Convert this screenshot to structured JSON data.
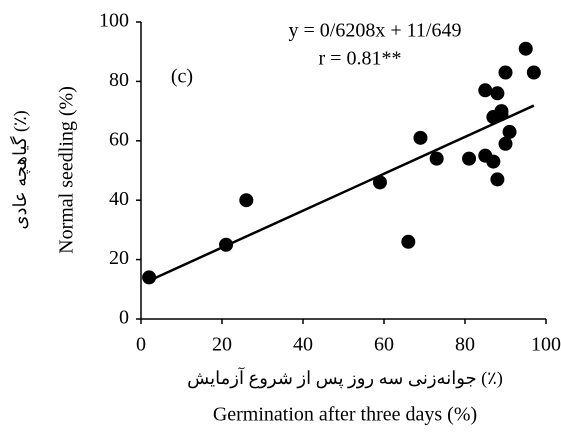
{
  "chart_data": {
    "type": "scatter",
    "annotation_label": "(c)",
    "equation": "y = 0/6208x + 11/649",
    "r_label": "r = 0.81**",
    "ylabel": "Normal seedling (%)",
    "ylabel_fa": "گیاهچه عادی (٪)",
    "xlabel_fa": "جوانه‌زنی سه روز پس از شروع آزمایش (٪)",
    "xlabel": "Germination after three days (%)",
    "x": [
      2,
      21,
      26,
      59,
      66,
      69,
      73,
      81,
      85,
      85,
      87,
      87,
      88,
      88,
      89,
      89,
      90,
      90,
      91,
      95,
      97
    ],
    "values": [
      14,
      25,
      40,
      46,
      26,
      61,
      54,
      54,
      77,
      55,
      68,
      53,
      76,
      47,
      70,
      69,
      83,
      59,
      63,
      91,
      83
    ],
    "color": "#000000",
    "trendline": {
      "slope": 0.6208,
      "intercept": 11.649
    },
    "xlim": [
      0,
      100
    ],
    "xticks": [
      0,
      20,
      40,
      60,
      80,
      100
    ],
    "ylim": [
      0,
      100
    ],
    "yticks": [
      0,
      20,
      40,
      60,
      80,
      100
    ],
    "grid": false
  }
}
